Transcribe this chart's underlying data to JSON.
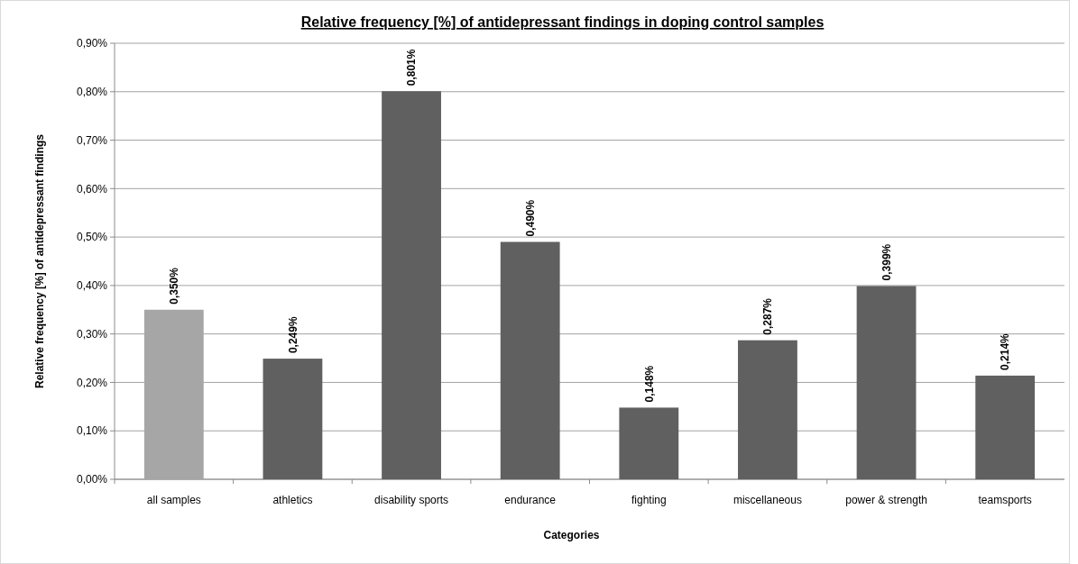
{
  "chart_data": {
    "type": "bar",
    "title": "Relative frequency [%] of antidepressant findings in doping control samples",
    "xlabel": "Categories",
    "ylabel": "Relative frequency [%] of antidepressant findings",
    "categories": [
      "all samples",
      "athletics",
      "disability sports",
      "endurance",
      "fighting",
      "miscellaneous",
      "power & strength",
      "teamsports"
    ],
    "values": [
      0.35,
      0.249,
      0.801,
      0.49,
      0.148,
      0.287,
      0.399,
      0.214
    ],
    "colors": [
      "#a6a6a6",
      "#606060",
      "#606060",
      "#606060",
      "#606060",
      "#606060",
      "#606060",
      "#606060"
    ],
    "value_labels": [
      "0,350%",
      "0,249%",
      "0,801%",
      "0,490%",
      "0,148%",
      "0,287%",
      "0,399%",
      "0,214%"
    ],
    "ylim": [
      0,
      0.9
    ],
    "yticks": [
      {
        "value": 0,
        "label": "0,00%"
      },
      {
        "value": 0.1,
        "label": "0,10%"
      },
      {
        "value": 0.2,
        "label": "0,20%"
      },
      {
        "value": 0.3,
        "label": "0,30%"
      },
      {
        "value": 0.4,
        "label": "0,40%"
      },
      {
        "value": 0.5,
        "label": "0,50%"
      },
      {
        "value": 0.6,
        "label": "0,60%"
      },
      {
        "value": 0.7,
        "label": "0,70%"
      },
      {
        "value": 0.8,
        "label": "0,80%"
      },
      {
        "value": 0.9,
        "label": "0,90%"
      }
    ],
    "grid": "y"
  }
}
